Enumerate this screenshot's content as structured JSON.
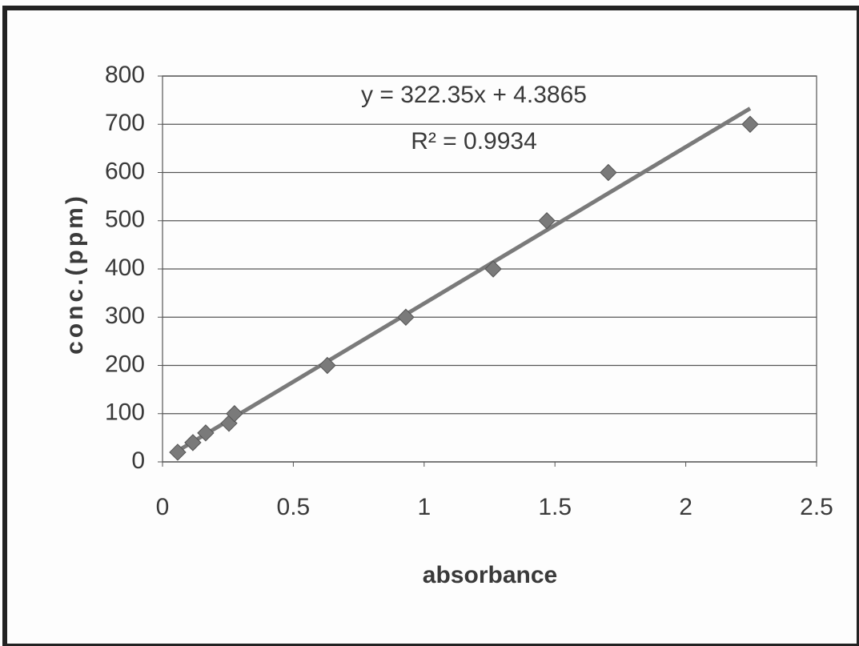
{
  "chart_data": {
    "type": "scatter",
    "x_label": "absorbance",
    "y_label": "conc.(ppm)",
    "annotations": [
      "y = 322.35x + 4.3865",
      "R² = 0.9934"
    ],
    "series": [
      {
        "color": "#7a7a7a",
        "x": [
          0.058,
          0.116,
          0.165,
          0.254,
          0.275,
          0.63,
          0.93,
          1.264,
          1.469,
          1.704,
          2.246
        ],
        "values": [
          20,
          40,
          60,
          80,
          100,
          200,
          300,
          400,
          500,
          600,
          700
        ]
      }
    ],
    "trendline": "linear",
    "xlim": [
      0,
      2.5
    ],
    "xticks": [
      0,
      0.5,
      1,
      1.5,
      2,
      2.5
    ],
    "ylim": [
      0,
      800
    ],
    "yticks": [
      0,
      100,
      200,
      300,
      400,
      500,
      600,
      700,
      800
    ],
    "grid": true
  }
}
